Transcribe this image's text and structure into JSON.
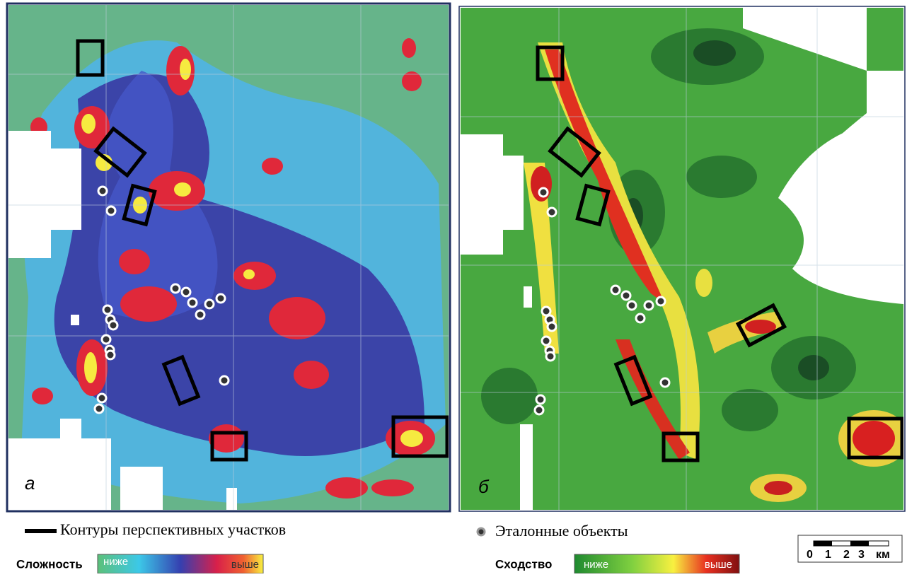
{
  "panels": [
    {
      "label": "а"
    },
    {
      "label": "б"
    }
  ],
  "legend": {
    "contours": "Контуры перспективных участков",
    "reference": "Эталонные объекты"
  },
  "colorbars": [
    {
      "title": "Сложность",
      "low": "ниже",
      "high": "выше"
    },
    {
      "title": "Сходство",
      "low": "ниже",
      "high": "выше"
    }
  ],
  "scale_bar": {
    "labels": [
      "0",
      "1",
      "2",
      "3",
      "км"
    ]
  }
}
